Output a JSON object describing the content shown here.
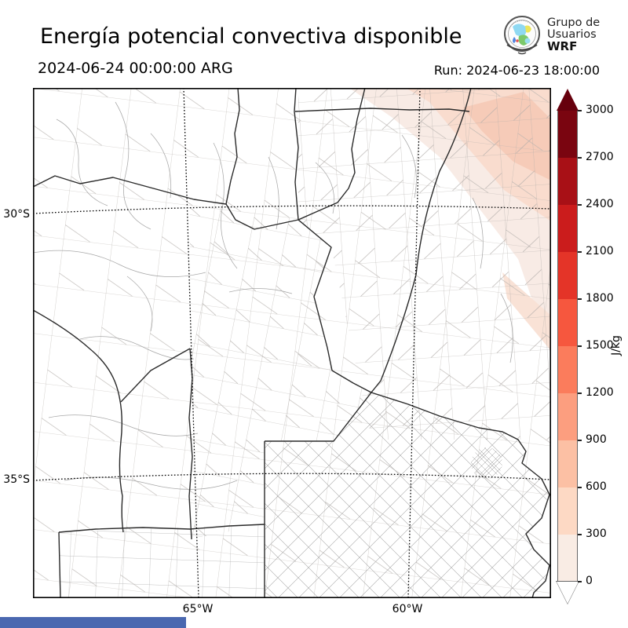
{
  "header": {
    "title": "Energía potencial convectiva disponible",
    "valid_time": "2024-06-24 00:00:00 ARG",
    "run_label": "Run: 2024-06-23 18:00:00",
    "logo": {
      "line1": "Grupo de",
      "line2": "Usuarios",
      "line3": "WRF"
    }
  },
  "map": {
    "axis": {
      "lat_top": "30°S",
      "lat_bottom": "35°S",
      "lon_left": "65°W",
      "lon_right": "60°W"
    }
  },
  "chart_data": {
    "type": "heatmap",
    "title": "Energía potencial convectiva disponible",
    "valid_time": "2024-06-24 00:00:00 ARG",
    "run": "Run: 2024-06-23 18:00:00",
    "units": "J/kg",
    "lat_ticks": [
      "30°S",
      "35°S"
    ],
    "lon_ticks": [
      "65°W",
      "60°W"
    ],
    "colorbar": {
      "label": "J/kg",
      "levels": [
        0,
        300,
        600,
        900,
        1200,
        1500,
        1800,
        2100,
        2400,
        2700,
        3000
      ],
      "colors": [
        "#f9ece4",
        "#fdd9c4",
        "#fcc0a4",
        "#fc9e7f",
        "#fb7c5c",
        "#f6573e",
        "#e43428",
        "#cb1c1c",
        "#a81016",
        "#7a0510"
      ],
      "under_color": "#ffffff",
      "over_color": "#67000d"
    },
    "field_summary": "CAPE near 0 J/kg over almost the whole domain; weak values of roughly 0-600 J/kg in a NW-SE band over the northeastern corner of the map (NE Santa Fe / Entre Rios / Corrientes).",
    "map_layers": [
      "province boundaries (dark)",
      "department boundaries (light gray)",
      "dotted lat/lon graticule"
    ]
  },
  "footer": {
    "bar_color": "#4a68b0"
  }
}
